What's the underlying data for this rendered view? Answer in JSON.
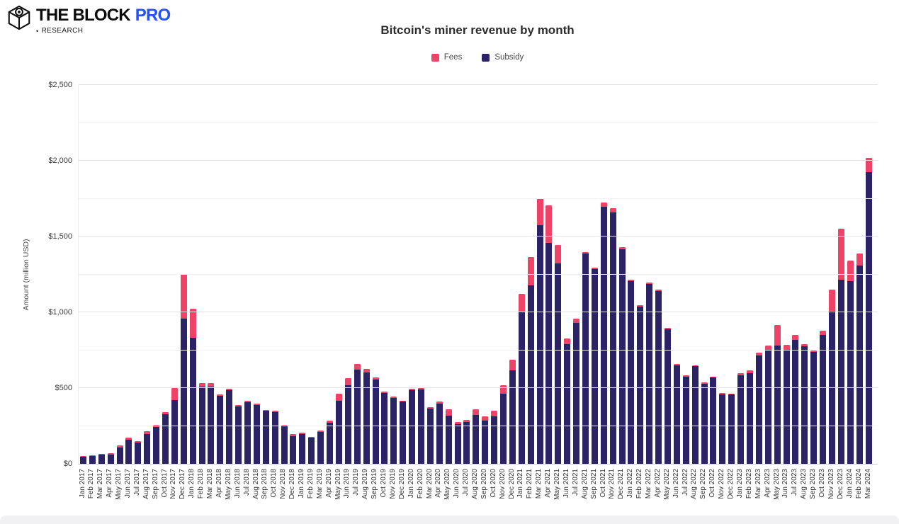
{
  "brand": {
    "title_main": "THE BLOCK",
    "title_pro": "PRO",
    "bullet": "•",
    "subtitle": "RESEARCH"
  },
  "chart_data": {
    "type": "bar",
    "stacked": true,
    "title": "Bitcoin's miner revenue by month",
    "ylabel": "Amount (million USD)",
    "ylim": [
      0,
      2500
    ],
    "gridline_minor_step": 250,
    "ytick_step": 500,
    "grid": true,
    "legend_position": "top",
    "yticks": [
      {
        "value": 0,
        "label": "$0"
      },
      {
        "value": 500,
        "label": "$500"
      },
      {
        "value": 1000,
        "label": "$1,000"
      },
      {
        "value": 1500,
        "label": "$1,500"
      },
      {
        "value": 2000,
        "label": "$2,000"
      },
      {
        "value": 2500,
        "label": "$2,500"
      }
    ],
    "legend": [
      {
        "name": "Fees",
        "color": "#ee4266"
      },
      {
        "name": "Subsidy",
        "color": "#2b2365"
      }
    ],
    "categories": [
      "Jan 2017",
      "Feb 2017",
      "Mar 2017",
      "Apr 2017",
      "May 2017",
      "Jun 2017",
      "Jul 2017",
      "Aug 2017",
      "Sep 2017",
      "Oct 2017",
      "Nov 2017",
      "Dec 2017",
      "Jan 2018",
      "Feb 2018",
      "Mar 2018",
      "Apr 2018",
      "May 2018",
      "Jun 2018",
      "Jul 2018",
      "Aug 2018",
      "Sep 2018",
      "Oct 2018",
      "Nov 2018",
      "Dec 2018",
      "Jan 2019",
      "Feb 2019",
      "Mar 2019",
      "Apr 2019",
      "May 2019",
      "Jun 2019",
      "Jul 2019",
      "Aug 2019",
      "Sep 2019",
      "Oct 2019",
      "Nov 2019",
      "Dec 2019",
      "Jan 2020",
      "Feb 2020",
      "Mar 2020",
      "Apr 2020",
      "May 2020",
      "Jun 2020",
      "Jul 2020",
      "Aug 2020",
      "Sep 2020",
      "Oct 2020",
      "Nov 2020",
      "Dec 2020",
      "Jan 2021",
      "Feb 2021",
      "Mar 2021",
      "Apr 2021",
      "May 2021",
      "Jun 2021",
      "Jul 2021",
      "Aug 2021",
      "Sep 2021",
      "Oct 2021",
      "Nov 2021",
      "Dec 2021",
      "Jan 2022",
      "Feb 2022",
      "Mar 2022",
      "Apr 2022",
      "May 2022",
      "Jun 2022",
      "Jul 2022",
      "Aug 2022",
      "Sep 2022",
      "Oct 2022",
      "Nov 2022",
      "Dec 2022",
      "Jan 2023",
      "Feb 2023",
      "Mar 2023",
      "Apr 2023",
      "May 2023",
      "Jun 2023",
      "Jul 2023",
      "Aug 2023",
      "Sep 2023",
      "Oct 2023",
      "Nov 2023",
      "Dec 2023",
      "Jan 2024",
      "Feb 2024",
      "Mar 2024"
    ],
    "series": [
      {
        "name": "Fees",
        "color": "#ee4266",
        "values": [
          3,
          3,
          7,
          6,
          14,
          16,
          11,
          19,
          13,
          16,
          80,
          292,
          194,
          24,
          20,
          10,
          10,
          8,
          8,
          9,
          7,
          6,
          8,
          12,
          10,
          8,
          10,
          14,
          48,
          48,
          38,
          25,
          16,
          12,
          8,
          6,
          7,
          8,
          9,
          11,
          39,
          11,
          13,
          39,
          28,
          36,
          58,
          68,
          120,
          190,
          176,
          247,
          124,
          36,
          31,
          11,
          11,
          31,
          28,
          13,
          12,
          10,
          10,
          9,
          10,
          9,
          8,
          8,
          9,
          8,
          8,
          6,
          12,
          17,
          19,
          31,
          134,
          36,
          30,
          15,
          12,
          27,
          142,
          335,
          134,
          79,
          92
        ]
      },
      {
        "name": "Subsidy",
        "color": "#2b2365",
        "values": [
          49,
          51,
          59,
          62,
          108,
          159,
          140,
          196,
          244,
          325,
          422,
          960,
          831,
          510,
          511,
          450,
          487,
          380,
          407,
          390,
          350,
          343,
          247,
          183,
          194,
          171,
          210,
          272,
          414,
          517,
          622,
          603,
          556,
          466,
          435,
          409,
          487,
          493,
          364,
          398,
          319,
          263,
          276,
          321,
          286,
          314,
          462,
          618,
          1002,
          1176,
          1575,
          1457,
          1322,
          792,
          928,
          1387,
          1285,
          1694,
          1657,
          1418,
          1205,
          1039,
          1188,
          1142,
          886,
          650,
          577,
          643,
          529,
          569,
          459,
          456,
          584,
          599,
          715,
          750,
          781,
          750,
          820,
          777,
          738,
          852,
          1009,
          1217,
          1206,
          1308,
          1927
        ]
      }
    ]
  }
}
